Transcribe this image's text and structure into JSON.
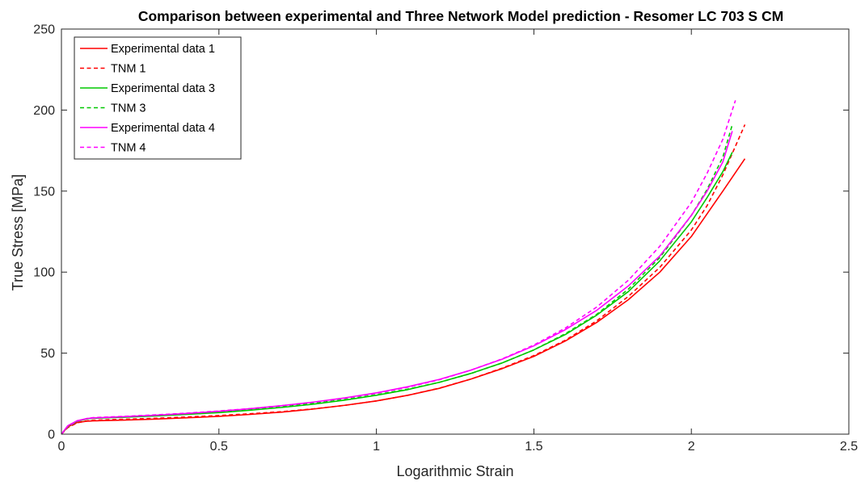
{
  "chart_data": {
    "type": "line",
    "title": "Comparison between experimental and Three Network Model prediction - Resomer LC 703 S CM",
    "xlabel": "Logarithmic Strain",
    "ylabel": "True Stress [MPa]",
    "xlim": [
      0,
      2.5
    ],
    "ylim": [
      0,
      250
    ],
    "xticks": [
      0,
      0.5,
      1,
      1.5,
      2,
      2.5
    ],
    "xtick_labels": [
      "0",
      "0.5",
      "1",
      "1.5",
      "2",
      "2.5"
    ],
    "yticks": [
      0,
      50,
      100,
      150,
      200,
      250
    ],
    "ytick_labels": [
      "0",
      "50",
      "100",
      "150",
      "200",
      "250"
    ],
    "grid": false,
    "legend_position": "top-left",
    "series": [
      {
        "name": "Experimental data 1",
        "color": "#ff0000",
        "style": "solid",
        "x": [
          0,
          0.02,
          0.05,
          0.08,
          0.1,
          0.2,
          0.3,
          0.4,
          0.5,
          0.6,
          0.7,
          0.8,
          0.9,
          1.0,
          1.1,
          1.2,
          1.3,
          1.4,
          1.5,
          1.6,
          1.7,
          1.8,
          1.9,
          2.0,
          2.05,
          2.1,
          2.17
        ],
        "y": [
          0,
          4.5,
          7.2,
          8.0,
          8.2,
          8.7,
          9.3,
          10.1,
          11.0,
          12.2,
          13.6,
          15.5,
          17.8,
          20.5,
          24.0,
          28.3,
          34.0,
          40.5,
          48.0,
          57.5,
          69.0,
          83.0,
          100.0,
          122.0,
          136.0,
          150.0,
          170.0
        ]
      },
      {
        "name": "TNM 1",
        "color": "#ff0000",
        "style": "dashed",
        "x": [
          0,
          0.02,
          0.05,
          0.08,
          0.1,
          0.2,
          0.3,
          0.4,
          0.5,
          0.6,
          0.7,
          0.8,
          0.9,
          1.0,
          1.1,
          1.2,
          1.3,
          1.4,
          1.5,
          1.6,
          1.7,
          1.8,
          1.9,
          2.0,
          2.05,
          2.1,
          2.17
        ],
        "y": [
          0,
          4.0,
          7.0,
          8.2,
          8.6,
          9.2,
          9.8,
          10.6,
          11.5,
          12.6,
          13.9,
          15.6,
          17.8,
          20.5,
          24.0,
          28.4,
          34.0,
          40.8,
          48.5,
          58.0,
          70.0,
          85.0,
          103.0,
          126.0,
          141.0,
          160.0,
          191.0
        ]
      },
      {
        "name": "Experimental data 3",
        "color": "#00c800",
        "style": "solid",
        "x": [
          0,
          0.02,
          0.05,
          0.08,
          0.1,
          0.2,
          0.3,
          0.4,
          0.5,
          0.6,
          0.7,
          0.8,
          0.9,
          1.0,
          1.1,
          1.2,
          1.3,
          1.4,
          1.5,
          1.6,
          1.7,
          1.8,
          1.9,
          2.0,
          2.05,
          2.1,
          2.13
        ],
        "y": [
          0,
          5.0,
          8.0,
          9.4,
          9.8,
          10.4,
          11.2,
          12.2,
          13.3,
          14.8,
          16.5,
          18.5,
          21.0,
          24.0,
          27.5,
          32.0,
          37.5,
          44.0,
          52.0,
          61.5,
          73.5,
          88.0,
          107.0,
          131.0,
          146.0,
          162.0,
          174.0
        ]
      },
      {
        "name": "TNM 3",
        "color": "#00c800",
        "style": "dashed",
        "x": [
          0,
          0.02,
          0.05,
          0.08,
          0.1,
          0.2,
          0.3,
          0.4,
          0.5,
          0.6,
          0.7,
          0.8,
          0.9,
          1.0,
          1.1,
          1.2,
          1.3,
          1.4,
          1.5,
          1.6,
          1.7,
          1.8,
          1.9,
          2.0,
          2.05,
          2.1,
          2.13
        ],
        "y": [
          0,
          4.5,
          7.8,
          9.4,
          10.0,
          10.8,
          11.7,
          12.7,
          13.9,
          15.3,
          17.0,
          19.0,
          21.4,
          24.3,
          27.8,
          32.0,
          37.4,
          44.0,
          52.0,
          62.0,
          74.0,
          89.5,
          109.0,
          135.0,
          151.0,
          171.0,
          191.0
        ]
      },
      {
        "name": "Experimental data 4",
        "color": "#ff00ff",
        "style": "solid",
        "x": [
          0,
          0.02,
          0.05,
          0.08,
          0.1,
          0.2,
          0.3,
          0.4,
          0.5,
          0.6,
          0.7,
          0.8,
          0.9,
          1.0,
          1.1,
          1.2,
          1.3,
          1.4,
          1.5,
          1.6,
          1.7,
          1.8,
          1.9,
          2.0,
          2.05,
          2.1,
          2.13
        ],
        "y": [
          0,
          5.2,
          8.3,
          9.6,
          10.0,
          10.8,
          11.7,
          12.8,
          14.1,
          15.7,
          17.6,
          19.8,
          22.4,
          25.5,
          29.3,
          33.8,
          39.5,
          46.3,
          54.5,
          64.5,
          76.5,
          91.5,
          110.0,
          135.0,
          150.0,
          168.0,
          187.0
        ]
      },
      {
        "name": "TNM 4",
        "color": "#ff00ff",
        "style": "dashed",
        "x": [
          0,
          0.02,
          0.05,
          0.08,
          0.1,
          0.2,
          0.3,
          0.4,
          0.5,
          0.6,
          0.7,
          0.8,
          0.9,
          1.0,
          1.1,
          1.2,
          1.3,
          1.4,
          1.5,
          1.6,
          1.7,
          1.8,
          1.9,
          2.0,
          2.05,
          2.1,
          2.14
        ],
        "y": [
          0,
          4.8,
          8.0,
          9.6,
          10.2,
          11.0,
          11.9,
          13.0,
          14.3,
          15.8,
          17.6,
          19.7,
          22.2,
          25.2,
          29.0,
          33.6,
          39.5,
          46.5,
          55.0,
          65.5,
          78.5,
          95.0,
          116.0,
          143.0,
          161.0,
          182.0,
          206.0
        ]
      }
    ]
  }
}
